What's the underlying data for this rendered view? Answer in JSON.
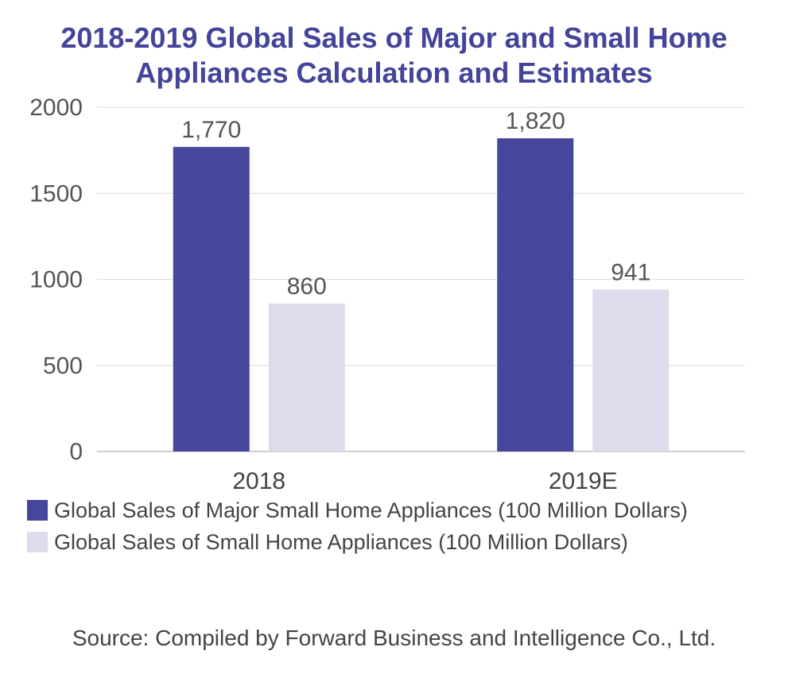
{
  "chart_data": {
    "type": "bar",
    "title_lines": [
      "2018-2019 Global Sales of Major and Small Home",
      "Appliances Calculation and Estimates"
    ],
    "categories": [
      "2018",
      "2019E"
    ],
    "series": [
      {
        "name": "Global Sales of Major Small Home Appliances (100 Million Dollars)",
        "values": [
          1770,
          1820
        ],
        "labels": [
          "1,770",
          "1,820"
        ],
        "color": "#46469a"
      },
      {
        "name": "Global Sales of Small Home Appliances (100 Million Dollars)",
        "values": [
          860,
          941
        ],
        "labels": [
          "860",
          "941"
        ],
        "color": "#dfdaec"
      }
    ],
    "ylim": [
      0,
      2000
    ],
    "yticks": [
      0,
      500,
      1000,
      1500,
      2000
    ],
    "grid": true,
    "legend_position": "bottom-left"
  },
  "source": "Source: Compiled by Forward Business and Intelligence Co., Ltd."
}
